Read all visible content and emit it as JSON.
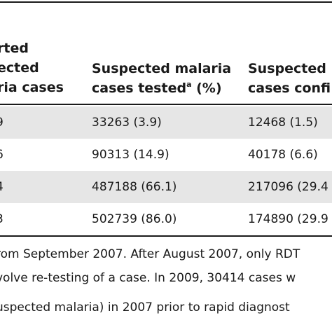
{
  "table": {
    "headers": [
      {
        "lines": [
          "rted",
          "ected",
          "ria cases"
        ]
      },
      {
        "lines": [
          "Suspected malaria",
          "cases tested"
        ],
        "superscript": "a",
        "suffix": " (%)"
      },
      {
        "lines": [
          "Suspected",
          "cases confi"
        ]
      }
    ],
    "rows": [
      [
        "9",
        "33263 (3.9)",
        "12468 (1.5)"
      ],
      [
        "6",
        "90313 (14.9)",
        "40178 (6.6)"
      ],
      [
        "4",
        "487188 (66.1)",
        "217096 (29.4"
      ],
      [
        "3",
        "502739 (86.0)",
        "174890 (29.9"
      ]
    ]
  },
  "footnotes": [
    "rom September 2007. After August 2007, only RDT",
    "volve re-testing of a case. In 2009, 30414 cases w",
    "uspected malaria) in 2007 prior to rapid diagnost"
  ]
}
